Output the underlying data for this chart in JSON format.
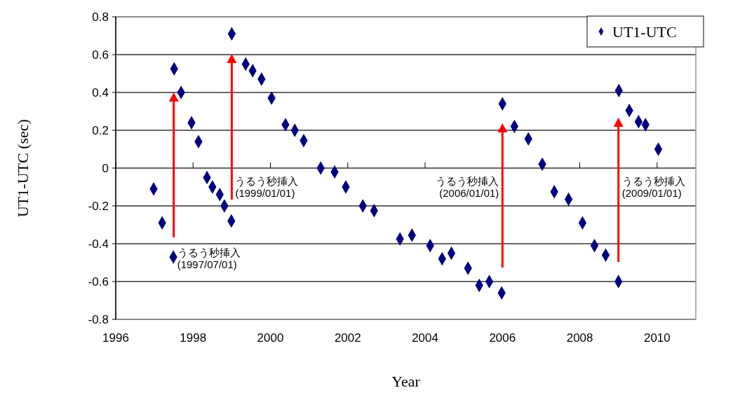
{
  "chart_data": {
    "type": "scatter",
    "xlabel": "Year",
    "ylabel": "UT1-UTC (sec)",
    "xlim": [
      1996,
      2011
    ],
    "xticks": [
      1996,
      1998,
      2000,
      2002,
      2004,
      2006,
      2008,
      2010
    ],
    "ylim": [
      -0.8,
      0.8
    ],
    "yticks": [
      -0.8,
      -0.6,
      -0.4,
      -0.2,
      0,
      0.2,
      0.4,
      0.6,
      0.8
    ],
    "grid": "y",
    "legend": "top right",
    "marker": "diamond",
    "series": [
      {
        "name": "UT1-UTC",
        "color": "#000080",
        "x": [
          1996.98,
          1997.2,
          1997.49,
          null,
          1997.51,
          1997.69,
          1997.96,
          1998.14,
          1998.36,
          1998.5,
          1998.69,
          1998.81,
          1998.99,
          null,
          1999.0,
          1999.36,
          1999.54,
          1999.77,
          2000.03,
          2000.39,
          2000.63,
          2000.86,
          2001.3,
          2001.66,
          2001.95,
          2002.39,
          2002.68,
          2003.35,
          2003.66,
          2004.13,
          2004.44,
          2004.68,
          2005.11,
          2005.4,
          2005.66,
          2005.98,
          null,
          2006.0,
          2006.31,
          2006.67,
          2007.03,
          2007.34,
          2007.71,
          2008.07,
          2008.38,
          2008.67,
          2009.0,
          null,
          2009.01,
          2009.28,
          2009.52,
          2009.7,
          2010.03
        ],
        "values": [
          -0.11,
          -0.29,
          -0.47,
          null,
          0.525,
          0.4,
          0.24,
          0.14,
          -0.05,
          -0.1,
          -0.14,
          -0.2,
          -0.28,
          null,
          0.71,
          0.55,
          0.515,
          0.47,
          0.37,
          0.23,
          0.2,
          0.145,
          0.0,
          -0.02,
          -0.1,
          -0.2,
          -0.225,
          -0.375,
          -0.355,
          -0.41,
          -0.48,
          -0.45,
          -0.53,
          -0.62,
          -0.6,
          -0.66,
          null,
          0.34,
          0.22,
          0.155,
          0.02,
          -0.125,
          -0.165,
          -0.29,
          -0.41,
          -0.46,
          -0.6,
          null,
          0.41,
          0.305,
          0.245,
          0.23,
          0.1
        ]
      }
    ],
    "ref_lines": [
      {
        "axis": "x",
        "value": 1997.5,
        "label": "うるう秒挿入\n(1997/07/01)",
        "color": "#ff0000"
      },
      {
        "axis": "x",
        "value": 1999.0,
        "label": "うるう秒挿入\n(1999/01/01)",
        "color": "#ff0000"
      },
      {
        "axis": "x",
        "value": 2006.0,
        "label": "うるう秒挿入\n(2006/01/01)",
        "color": "#ff0000"
      },
      {
        "axis": "x",
        "value": 2009.0,
        "label": "うるう秒挿入\n(2009/01/01)",
        "color": "#ff0000"
      }
    ]
  }
}
